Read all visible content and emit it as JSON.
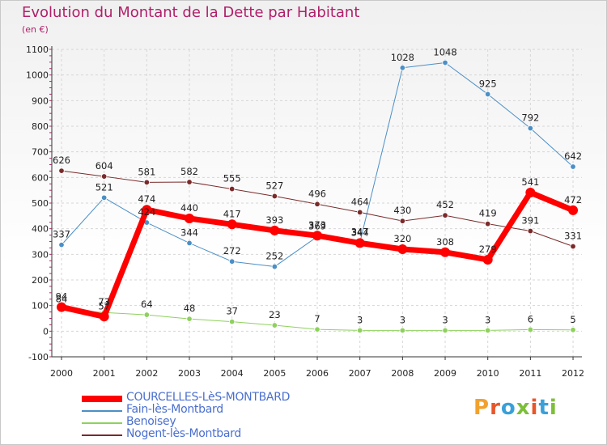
{
  "title": "Evolution du Montant de la Dette par Habitant",
  "unit": "(en €)",
  "logo": "Proxiti",
  "chart_data": {
    "type": "line",
    "x": [
      "2000",
      "2001",
      "2002",
      "2003",
      "2004",
      "2005",
      "2006",
      "2007",
      "2008",
      "2009",
      "2010",
      "2011",
      "2012"
    ],
    "ylim": [
      -100,
      1100
    ],
    "yticks": [
      -100,
      0,
      100,
      200,
      300,
      400,
      500,
      600,
      700,
      800,
      900,
      1000,
      1100
    ],
    "grid": true,
    "legend_position": "bottom-left",
    "series": [
      {
        "name": "COURCELLES-LèS-MONTBARD",
        "color": "#ff0000",
        "width": 7,
        "marker": 6,
        "values": [
          94,
          57,
          474,
          440,
          417,
          393,
          373,
          344,
          320,
          308,
          279,
          541,
          472
        ]
      },
      {
        "name": "Fain-lès-Montbard",
        "color": "#4b8fc6",
        "width": 1,
        "marker": 3.3,
        "values": [
          337,
          521,
          424,
          344,
          272,
          252,
          369,
          347,
          1028,
          1048,
          925,
          792,
          642
        ]
      },
      {
        "name": "Benoisey",
        "color": "#8ed15d",
        "width": 1,
        "marker": 3.3,
        "values": [
          84,
          73,
          64,
          48,
          37,
          23,
          7,
          3,
          3,
          3,
          3,
          6,
          5
        ]
      },
      {
        "name": "Nogent-lès-Montbard",
        "color": "#7a2a2a",
        "width": 1,
        "marker": 3.3,
        "values": [
          626,
          604,
          581,
          582,
          555,
          527,
          496,
          464,
          430,
          452,
          419,
          391,
          331
        ]
      }
    ]
  }
}
